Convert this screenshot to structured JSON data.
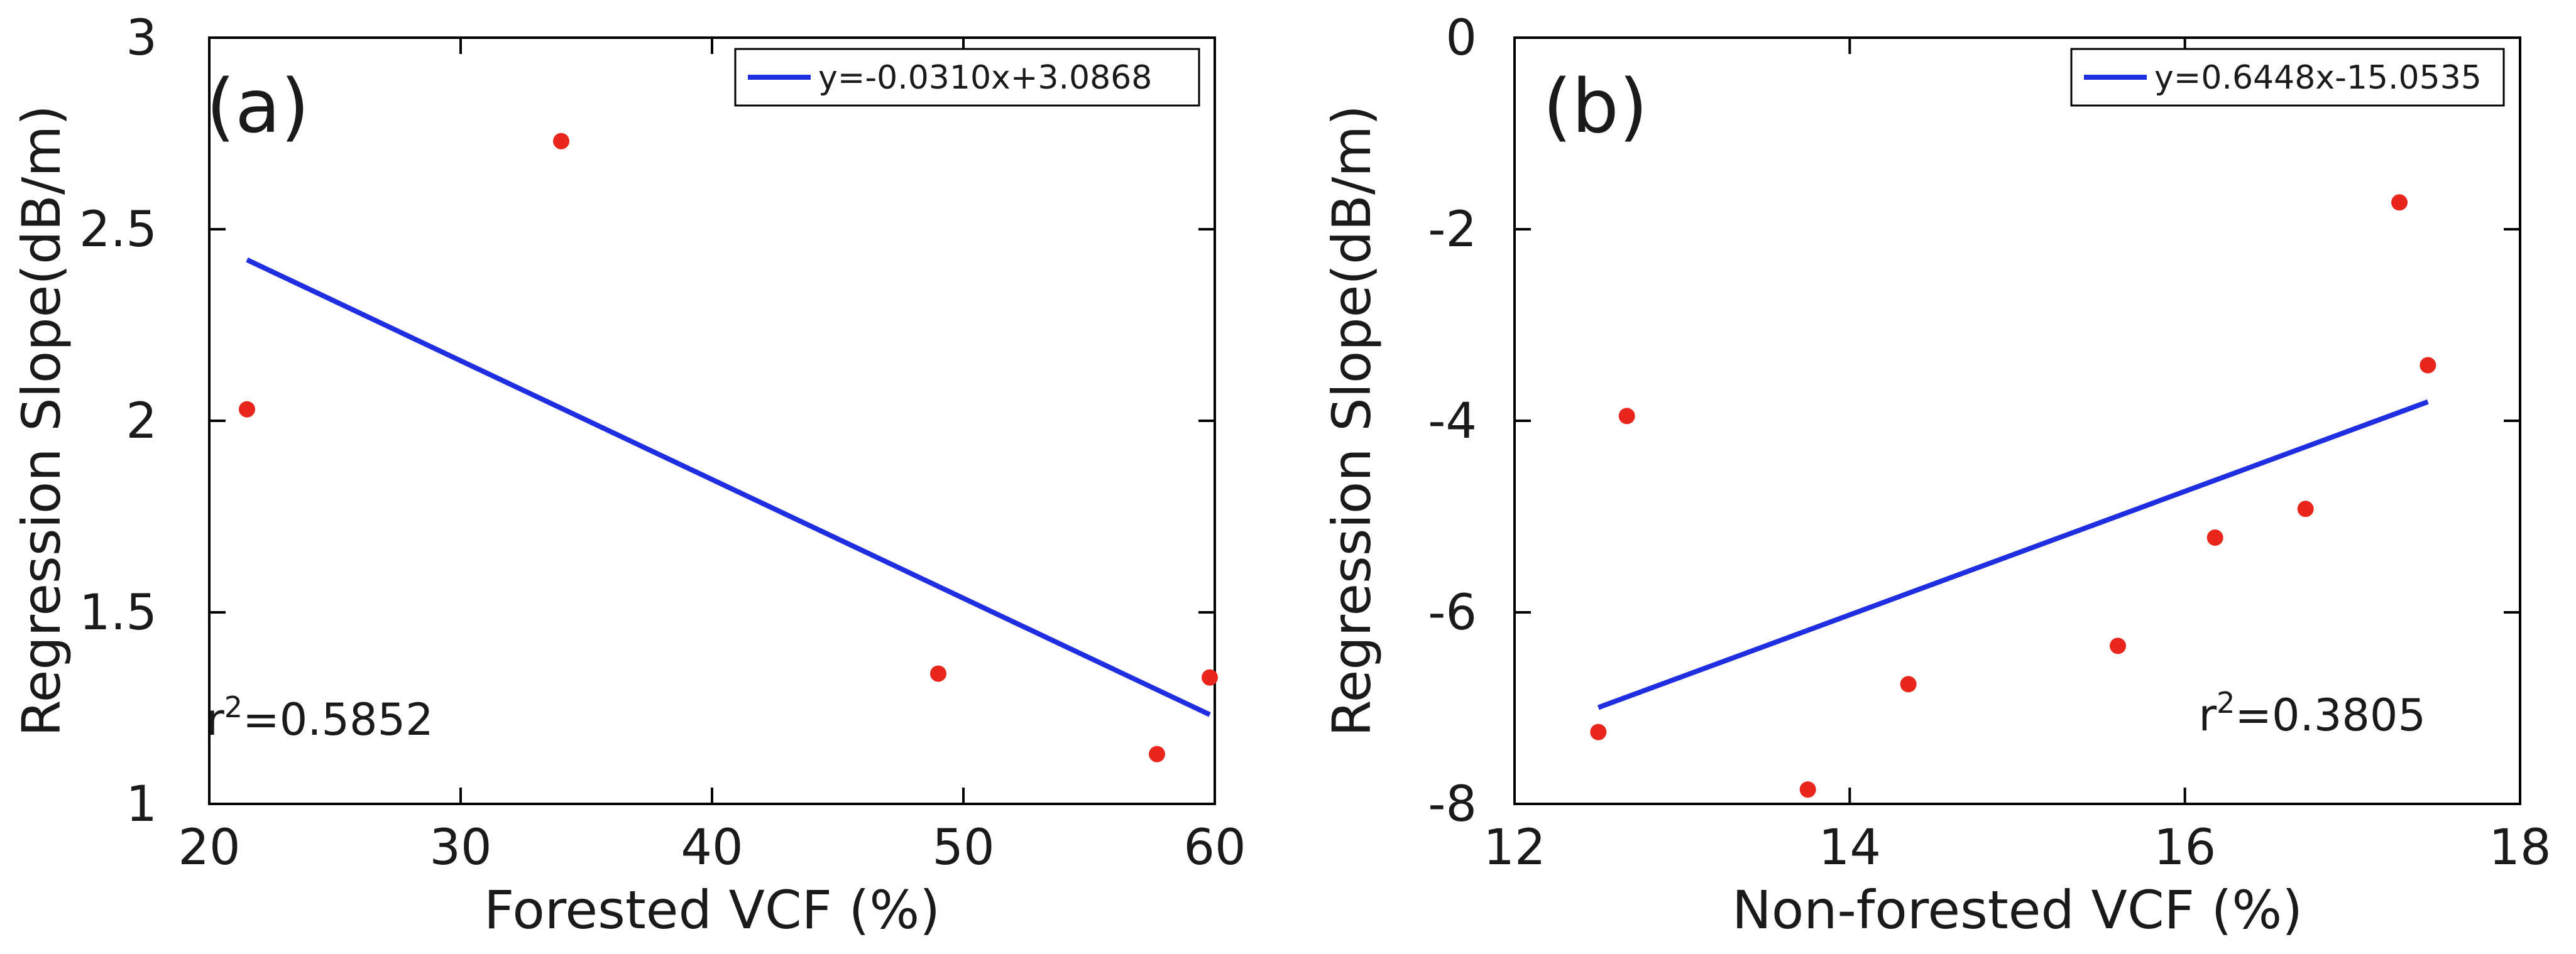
{
  "chart_data": [
    {
      "type": "scatter",
      "panel_label": "(a)",
      "xlabel": "Forested VCF (%)",
      "ylabel": "Regression Slope(dB/m)",
      "xlim": [
        20,
        60
      ],
      "ylim": [
        1,
        3
      ],
      "xticks": [
        20,
        30,
        40,
        50,
        60
      ],
      "yticks": [
        1,
        1.5,
        2,
        2.5,
        3
      ],
      "xtick_labels": [
        "20",
        "30",
        "40",
        "50",
        "60"
      ],
      "ytick_labels": [
        "1",
        "1.5",
        "2",
        "2.5",
        "3"
      ],
      "points": [
        {
          "x": 21.5,
          "y": 2.03
        },
        {
          "x": 34.0,
          "y": 2.73
        },
        {
          "x": 49.0,
          "y": 1.34
        },
        {
          "x": 57.7,
          "y": 1.13
        },
        {
          "x": 59.8,
          "y": 1.33
        }
      ],
      "fit": {
        "slope": -0.031,
        "intercept": 3.0868,
        "x_range": [
          21.5,
          59.8
        ],
        "color": "#1f2ee0"
      },
      "legend": "y=-0.0310x+3.0868",
      "legend_position": "top-right",
      "r2_prefix": "r",
      "r2_exp": "2",
      "r2_value": "=0.5852",
      "r2_position": "bottom-left",
      "marker_color": "#e8261c"
    },
    {
      "type": "scatter",
      "panel_label": "(b)",
      "xlabel": "Non-forested VCF (%)",
      "ylabel": "Regression Slope(dB/m)",
      "xlim": [
        12,
        18
      ],
      "ylim": [
        -8,
        0
      ],
      "xticks": [
        12,
        14,
        16,
        18
      ],
      "yticks": [
        -8,
        -6,
        -4,
        -2,
        0
      ],
      "xtick_labels": [
        "12",
        "14",
        "16",
        "18"
      ],
      "ytick_labels": [
        "-8",
        "-6",
        "-4",
        "-2",
        "0"
      ],
      "points": [
        {
          "x": 12.5,
          "y": -7.25
        },
        {
          "x": 12.67,
          "y": -3.95
        },
        {
          "x": 13.75,
          "y": -7.85
        },
        {
          "x": 14.35,
          "y": -6.75
        },
        {
          "x": 15.6,
          "y": -6.35
        },
        {
          "x": 16.18,
          "y": -5.22
        },
        {
          "x": 16.72,
          "y": -4.92
        },
        {
          "x": 17.28,
          "y": -1.72
        },
        {
          "x": 17.45,
          "y": -3.42
        }
      ],
      "fit": {
        "slope": 0.6448,
        "intercept": -15.0535,
        "x_range": [
          12.5,
          17.45
        ],
        "color": "#1f2ee0"
      },
      "legend": "y=0.6448x-15.0535",
      "legend_position": "top-right",
      "r2_prefix": "r",
      "r2_exp": "2",
      "r2_value": "=0.3805",
      "r2_position": "bottom-right",
      "marker_color": "#e8261c"
    }
  ]
}
